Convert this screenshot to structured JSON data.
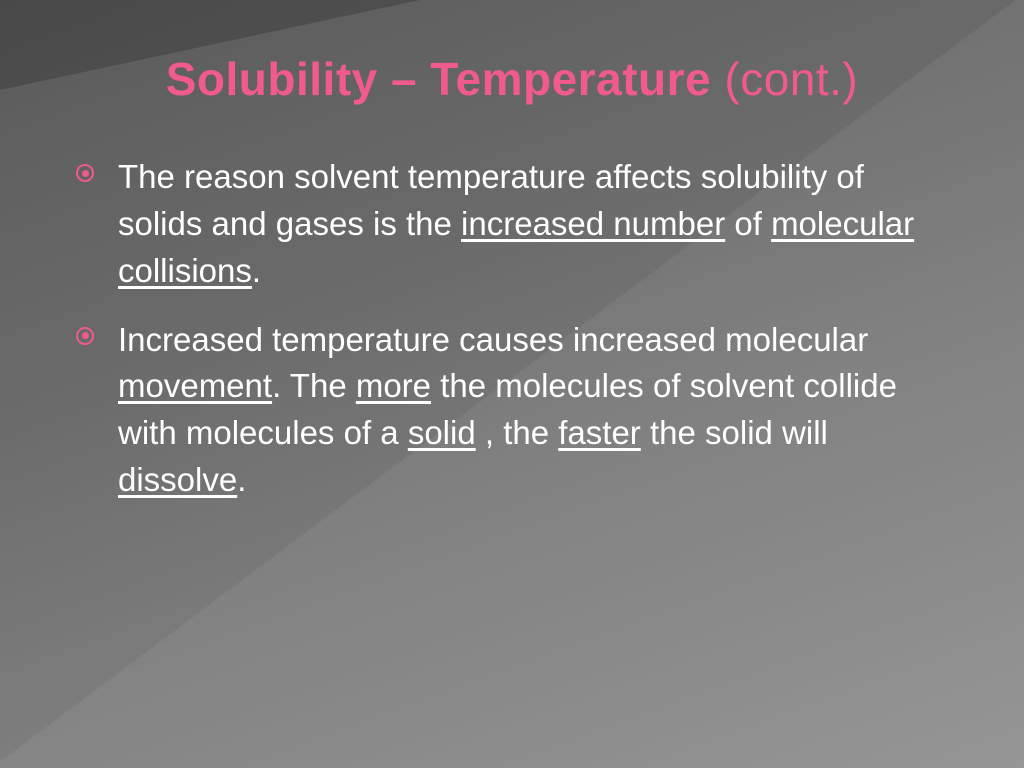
{
  "colors": {
    "title": "#f05a8c",
    "bullet": "#f05a8c",
    "body_text": "#ffffff"
  },
  "title": {
    "part_bold": "Solubility – Temperature",
    "part_regular": " (cont.)"
  },
  "bullets": [
    {
      "segments": [
        {
          "text": "The reason solvent temperature affects solubility of solids and gases is the ",
          "u": false
        },
        {
          "text": "increased number",
          "u": true
        },
        {
          "text": " of ",
          "u": false
        },
        {
          "text": "molecular collisions",
          "u": true
        },
        {
          "text": ".",
          "u": false
        }
      ]
    },
    {
      "segments": [
        {
          "text": "Increased temperature causes increased molecular ",
          "u": false
        },
        {
          "text": "movement",
          "u": true
        },
        {
          "text": ". The ",
          "u": false
        },
        {
          "text": "more",
          "u": true
        },
        {
          "text": " the molecules of solvent collide with molecules of a ",
          "u": false
        },
        {
          "text": "solid",
          "u": true
        },
        {
          "text": " , the ",
          "u": false
        },
        {
          "text": "faster",
          "u": true
        },
        {
          "text": " the solid will ",
          "u": false
        },
        {
          "text": "dissolve",
          "u": true
        },
        {
          "text": ".",
          "u": false
        }
      ]
    }
  ]
}
